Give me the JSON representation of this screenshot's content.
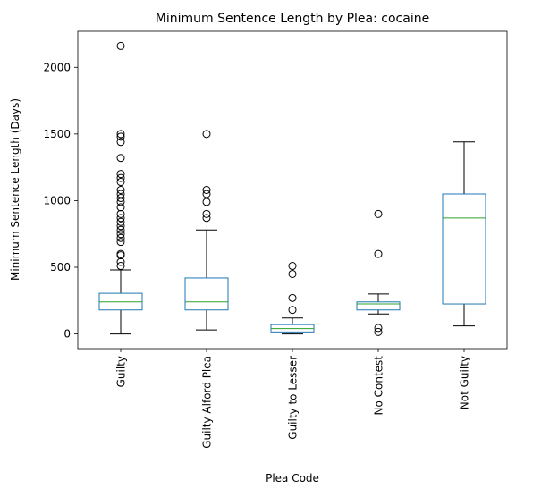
{
  "chart_data": {
    "type": "box",
    "title": "Minimum Sentence Length by Plea: cocaine",
    "xlabel": "Plea Code",
    "ylabel": "Minimum Sentence Length (Days)",
    "ylim": [
      -110,
      2270
    ],
    "yticks": [
      0,
      500,
      1000,
      1500,
      2000
    ],
    "grid": false,
    "colors": {
      "box": "#1f77b4",
      "median": "#2ca02c",
      "whisker": "#000000",
      "flier": "#000000"
    },
    "categories": [
      "Guilty",
      "Guilty Alford Plea",
      "Guilty to Lesser",
      "No Contest",
      "Not Guilty"
    ],
    "boxes": [
      {
        "category": "Guilty",
        "whislo": 0,
        "q1": 180,
        "median": 240,
        "q3": 305,
        "whishi": 480,
        "fliers": [
          510,
          540,
          590,
          600,
          690,
          720,
          750,
          780,
          810,
          840,
          870,
          900,
          950,
          990,
          1020,
          1050,
          1080,
          1140,
          1170,
          1200,
          1320,
          1440,
          1480,
          1500,
          2160
        ]
      },
      {
        "category": "Guilty Alford Plea",
        "whislo": 30,
        "q1": 180,
        "median": 240,
        "q3": 420,
        "whishi": 780,
        "fliers": [
          870,
          900,
          990,
          1050,
          1080,
          1500
        ]
      },
      {
        "category": "Guilty to Lesser",
        "whislo": 0,
        "q1": 15,
        "median": 40,
        "q3": 70,
        "whishi": 120,
        "fliers": [
          180,
          270,
          450,
          510
        ]
      },
      {
        "category": "No Contest",
        "whislo": 150,
        "q1": 180,
        "median": 225,
        "q3": 240,
        "whishi": 300,
        "fliers": [
          15,
          45,
          600,
          900
        ]
      },
      {
        "category": "Not Guilty",
        "whislo": 60,
        "q1": 225,
        "median": 870,
        "q3": 1050,
        "whishi": 1440,
        "fliers": []
      }
    ]
  }
}
